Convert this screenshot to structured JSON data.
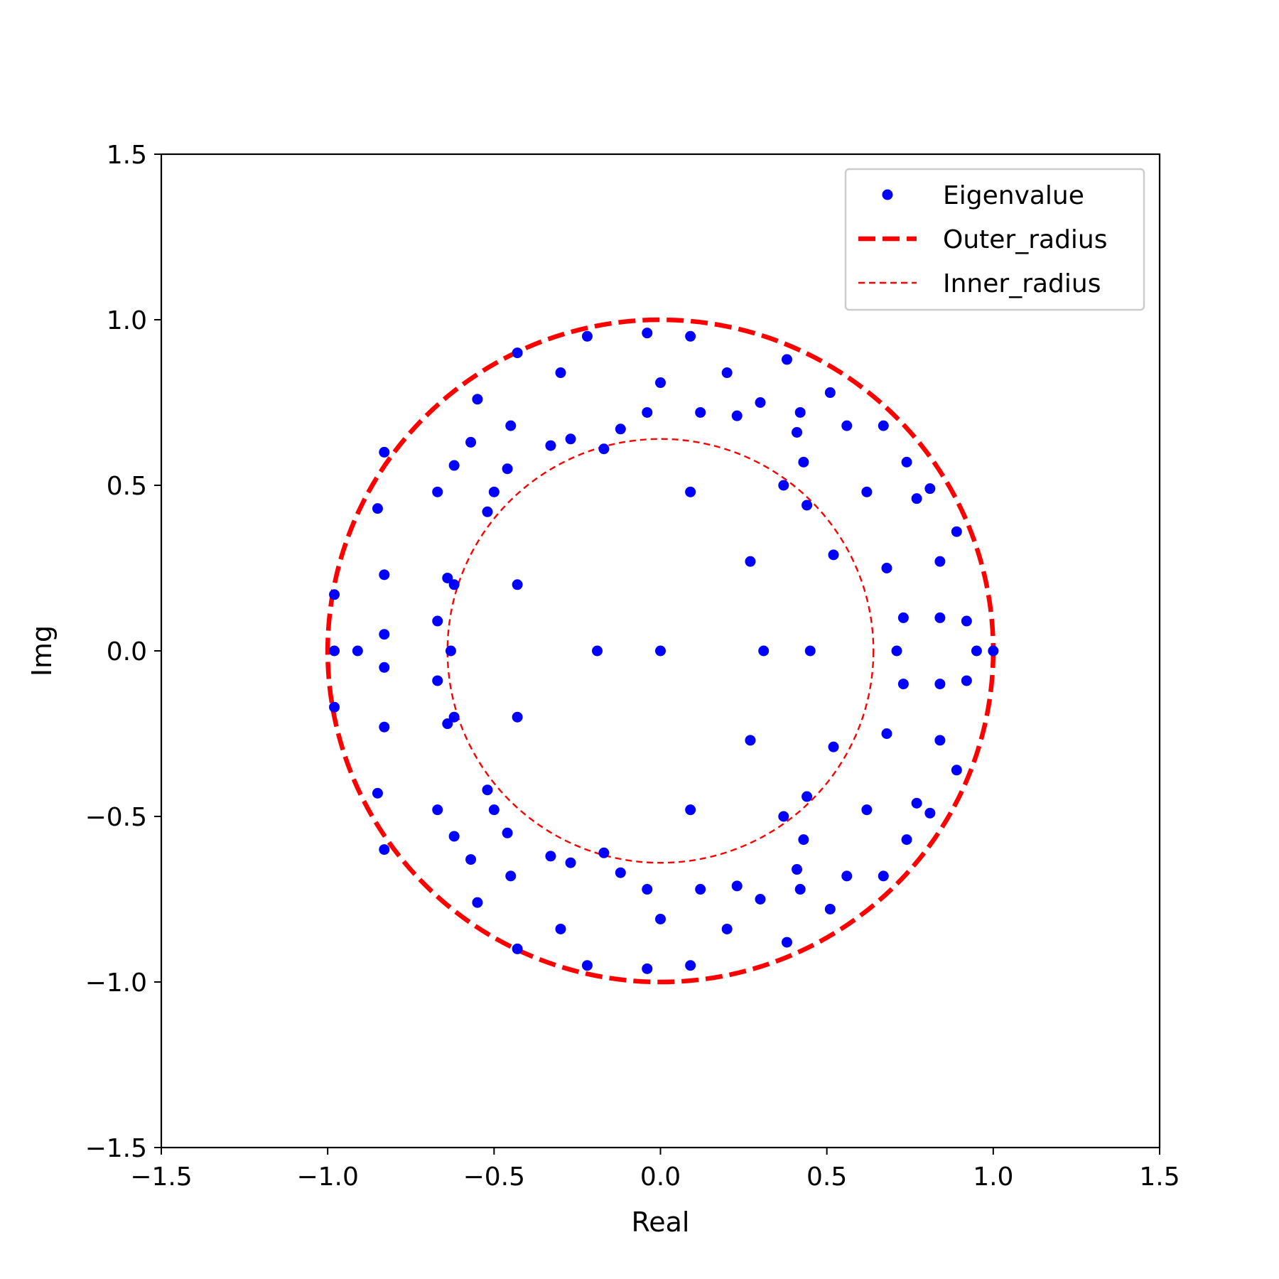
{
  "chart_data": {
    "type": "scatter",
    "title": "",
    "xlabel": "Real",
    "ylabel": "Img",
    "xlim": [
      -1.5,
      1.5
    ],
    "ylim": [
      -1.5,
      1.5
    ],
    "xticks": [
      -1.5,
      -1.0,
      -0.5,
      0.0,
      0.5,
      1.0,
      1.5
    ],
    "yticks": [
      -1.5,
      -1.0,
      -0.5,
      0.0,
      0.5,
      1.0,
      1.5
    ],
    "xtick_labels": [
      "−1.5",
      "−1.0",
      "−0.5",
      "0.0",
      "0.5",
      "1.0",
      "1.5"
    ],
    "ytick_labels": [
      "−1.5",
      "−1.0",
      "−0.5",
      "0.0",
      "0.5",
      "1.0",
      "1.5"
    ],
    "grid": false,
    "legend_position": "top-right",
    "series": [
      {
        "name": "Eigenvalue",
        "kind": "points",
        "color": "#0000ff",
        "points": [
          [
            1.0,
            0.0
          ],
          [
            0.95,
            0.0
          ],
          [
            0.92,
            0.09
          ],
          [
            0.92,
            -0.09
          ],
          [
            0.89,
            0.36
          ],
          [
            0.89,
            -0.36
          ],
          [
            0.84,
            0.27
          ],
          [
            0.84,
            -0.27
          ],
          [
            0.84,
            0.1
          ],
          [
            0.84,
            -0.1
          ],
          [
            0.81,
            0.49
          ],
          [
            0.81,
            -0.49
          ],
          [
            0.77,
            0.46
          ],
          [
            0.77,
            -0.46
          ],
          [
            0.74,
            0.57
          ],
          [
            0.74,
            -0.57
          ],
          [
            0.73,
            0.1
          ],
          [
            0.73,
            -0.1
          ],
          [
            0.71,
            0.0
          ],
          [
            0.68,
            0.25
          ],
          [
            0.68,
            -0.25
          ],
          [
            0.67,
            0.68
          ],
          [
            0.67,
            -0.68
          ],
          [
            0.62,
            0.48
          ],
          [
            0.62,
            -0.48
          ],
          [
            0.56,
            0.68
          ],
          [
            0.56,
            -0.68
          ],
          [
            0.52,
            0.29
          ],
          [
            0.52,
            -0.29
          ],
          [
            0.51,
            0.78
          ],
          [
            0.51,
            -0.78
          ],
          [
            0.45,
            0.0
          ],
          [
            0.44,
            0.44
          ],
          [
            0.44,
            -0.44
          ],
          [
            0.43,
            0.57
          ],
          [
            0.43,
            -0.57
          ],
          [
            0.42,
            0.72
          ],
          [
            0.42,
            -0.72
          ],
          [
            0.41,
            0.66
          ],
          [
            0.41,
            -0.66
          ],
          [
            0.38,
            0.88
          ],
          [
            0.38,
            -0.88
          ],
          [
            0.37,
            0.5
          ],
          [
            0.37,
            -0.5
          ],
          [
            0.31,
            0.0
          ],
          [
            0.3,
            0.75
          ],
          [
            0.3,
            -0.75
          ],
          [
            0.27,
            0.27
          ],
          [
            0.27,
            -0.27
          ],
          [
            0.23,
            0.71
          ],
          [
            0.23,
            -0.71
          ],
          [
            0.2,
            0.84
          ],
          [
            0.2,
            -0.84
          ],
          [
            0.12,
            0.72
          ],
          [
            0.12,
            -0.72
          ],
          [
            0.09,
            0.95
          ],
          [
            0.09,
            -0.95
          ],
          [
            0.09,
            0.48
          ],
          [
            0.09,
            -0.48
          ],
          [
            0.0,
            0.0
          ],
          [
            0.0,
            0.81
          ],
          [
            0.0,
            -0.81
          ],
          [
            -0.04,
            0.96
          ],
          [
            -0.04,
            -0.96
          ],
          [
            -0.04,
            0.72
          ],
          [
            -0.04,
            -0.72
          ],
          [
            -0.12,
            0.67
          ],
          [
            -0.12,
            -0.67
          ],
          [
            -0.17,
            0.61
          ],
          [
            -0.17,
            -0.61
          ],
          [
            -0.19,
            0.0
          ],
          [
            -0.22,
            0.95
          ],
          [
            -0.22,
            -0.95
          ],
          [
            -0.27,
            0.64
          ],
          [
            -0.27,
            -0.64
          ],
          [
            -0.3,
            0.84
          ],
          [
            -0.3,
            -0.84
          ],
          [
            -0.33,
            0.62
          ],
          [
            -0.33,
            -0.62
          ],
          [
            -0.43,
            0.9
          ],
          [
            -0.43,
            -0.9
          ],
          [
            -0.43,
            0.2
          ],
          [
            -0.43,
            -0.2
          ],
          [
            -0.45,
            0.68
          ],
          [
            -0.45,
            -0.68
          ],
          [
            -0.46,
            0.55
          ],
          [
            -0.46,
            -0.55
          ],
          [
            -0.5,
            0.48
          ],
          [
            -0.5,
            -0.48
          ],
          [
            -0.52,
            0.42
          ],
          [
            -0.52,
            -0.42
          ],
          [
            -0.55,
            0.76
          ],
          [
            -0.55,
            -0.76
          ],
          [
            -0.57,
            0.63
          ],
          [
            -0.57,
            -0.63
          ],
          [
            -0.62,
            0.56
          ],
          [
            -0.62,
            -0.56
          ],
          [
            -0.62,
            0.2
          ],
          [
            -0.62,
            -0.2
          ],
          [
            -0.63,
            0.0
          ],
          [
            -0.64,
            0.22
          ],
          [
            -0.64,
            -0.22
          ],
          [
            -0.67,
            0.48
          ],
          [
            -0.67,
            -0.48
          ],
          [
            -0.67,
            0.09
          ],
          [
            -0.67,
            -0.09
          ],
          [
            -0.83,
            0.6
          ],
          [
            -0.83,
            -0.6
          ],
          [
            -0.83,
            0.23
          ],
          [
            -0.83,
            -0.23
          ],
          [
            -0.83,
            0.05
          ],
          [
            -0.83,
            -0.05
          ],
          [
            -0.85,
            0.43
          ],
          [
            -0.85,
            -0.43
          ],
          [
            -0.91,
            0.0
          ],
          [
            -0.98,
            0.0
          ],
          [
            -0.98,
            0.17
          ],
          [
            -0.98,
            -0.17
          ]
        ]
      },
      {
        "name": "Outer_radius",
        "kind": "circle",
        "radius": 1.0,
        "color": "#ff0000",
        "style": "thick dashed"
      },
      {
        "name": "Inner_radius",
        "kind": "circle",
        "radius": 0.64,
        "color": "#ff0000",
        "style": "thin dashed"
      }
    ]
  }
}
